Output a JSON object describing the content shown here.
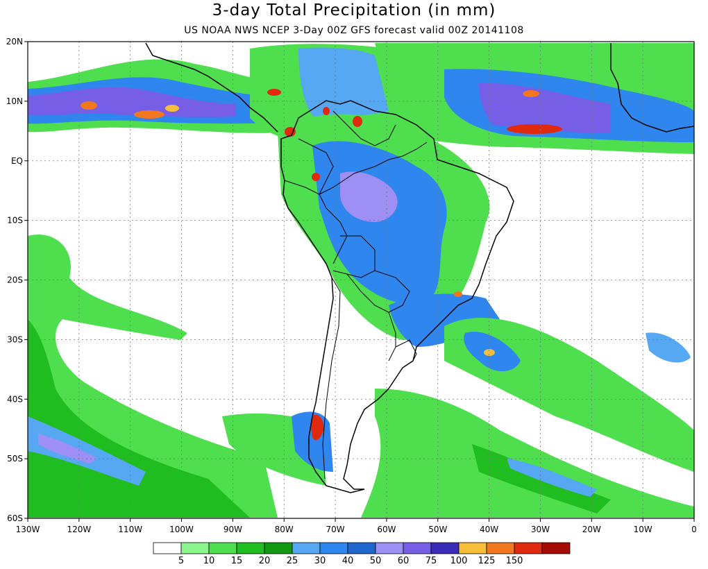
{
  "title": "3-day Total Precipitation (in mm)",
  "subtitle": "US NOAA NWS NCEP 3-Day 00Z GFS forecast valid 00Z 20141108",
  "chart_data": {
    "type": "map",
    "lat_labels": [
      "20N",
      "10N",
      "EQ",
      "10S",
      "20S",
      "30S",
      "40S",
      "50S",
      "60S"
    ],
    "lon_labels": [
      "130W",
      "120W",
      "110W",
      "100W",
      "90W",
      "80W",
      "70W",
      "60W",
      "50W",
      "40W",
      "30W",
      "20W",
      "10W",
      "0"
    ],
    "lat_range": [
      -60,
      20
    ],
    "lon_range": [
      -130,
      0
    ],
    "colorbar": {
      "labels": [
        "5",
        "10",
        "15",
        "20",
        "25",
        "30",
        "40",
        "50",
        "60",
        "75",
        "100",
        "125",
        "150"
      ],
      "colors": [
        "#ffffff",
        "#8cf58c",
        "#4ede4e",
        "#1fbd1f",
        "#119a11",
        "#56a8f3",
        "#2f86ee",
        "#1f66cf",
        "#9d8ff3",
        "#765ee6",
        "#3a2bb9",
        "#f7be3a",
        "#f3771e",
        "#e02a10",
        "#a50b07"
      ]
    }
  }
}
